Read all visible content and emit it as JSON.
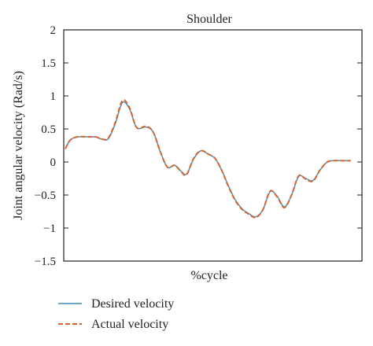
{
  "chart_data": {
    "type": "line",
    "title": "Shoulder",
    "xlabel": "%cycle",
    "ylabel": "Joint angular velocity (Rad/s)",
    "ylim": [
      -1.5,
      2
    ],
    "xlim": [
      0,
      100
    ],
    "yticks": [
      "2",
      "1.5",
      "1",
      "0.5",
      "0",
      "−0.5",
      "−1",
      "−1.5"
    ],
    "ytick_values": [
      2,
      1.5,
      1,
      0.5,
      0,
      -0.5,
      -1,
      -1.5
    ],
    "grid": false,
    "legend_position": "bottom-left",
    "series": [
      {
        "name": "Desired velocity",
        "color": "#3a8fb7",
        "style": "solid",
        "x": [
          0,
          1.7,
          4.2,
          8.3,
          10.8,
          12.5,
          15,
          17.5,
          20,
          22.5,
          25,
          28.3,
          30.8,
          33.3,
          35.8,
          38.3,
          40.8,
          42.5,
          45,
          47.5,
          50,
          52.5,
          55,
          56.7,
          59.2,
          61.7,
          64.2,
          66.7,
          69.2,
          71.7,
          74.2,
          76.7,
          79.2,
          81.7,
          84.2,
          86.7,
          89.2,
          91.7,
          94.2,
          96.7,
          98.3,
          100
        ],
        "y": [
          0.2,
          0.33,
          0.38,
          0.38,
          0.38,
          0.35,
          0.35,
          0.58,
          0.9,
          0.8,
          0.52,
          0.53,
          0.45,
          0.15,
          -0.08,
          -0.05,
          -0.15,
          -0.18,
          0.05,
          0.17,
          0.12,
          0.05,
          -0.15,
          -0.32,
          -0.55,
          -0.7,
          -0.78,
          -0.83,
          -0.72,
          -0.45,
          -0.52,
          -0.68,
          -0.5,
          -0.22,
          -0.25,
          -0.28,
          -0.12,
          0.0,
          0.02,
          0.02,
          0.02,
          0.02
        ]
      },
      {
        "name": "Actual velocity",
        "color": "#d9622b",
        "style": "dashed",
        "x": [
          0,
          1.7,
          4.2,
          8.3,
          10.8,
          12.5,
          15,
          17.5,
          20,
          22.5,
          25,
          28.3,
          30.8,
          33.3,
          35.8,
          38.3,
          40.8,
          42.5,
          45,
          47.5,
          50,
          52.5,
          55,
          56.7,
          59.2,
          61.7,
          64.2,
          66.7,
          69.2,
          71.7,
          74.2,
          76.7,
          79.2,
          81.7,
          84.2,
          86.7,
          89.2,
          91.7,
          94.2,
          96.7,
          98.3,
          100
        ],
        "y": [
          0.2,
          0.33,
          0.38,
          0.38,
          0.38,
          0.35,
          0.36,
          0.6,
          0.93,
          0.82,
          0.52,
          0.54,
          0.45,
          0.15,
          -0.08,
          -0.05,
          -0.16,
          -0.19,
          0.06,
          0.17,
          0.12,
          0.05,
          -0.15,
          -0.33,
          -0.56,
          -0.71,
          -0.79,
          -0.84,
          -0.72,
          -0.44,
          -0.53,
          -0.69,
          -0.5,
          -0.21,
          -0.26,
          -0.29,
          -0.12,
          0.0,
          0.02,
          0.02,
          0.02,
          0.02
        ]
      }
    ]
  }
}
